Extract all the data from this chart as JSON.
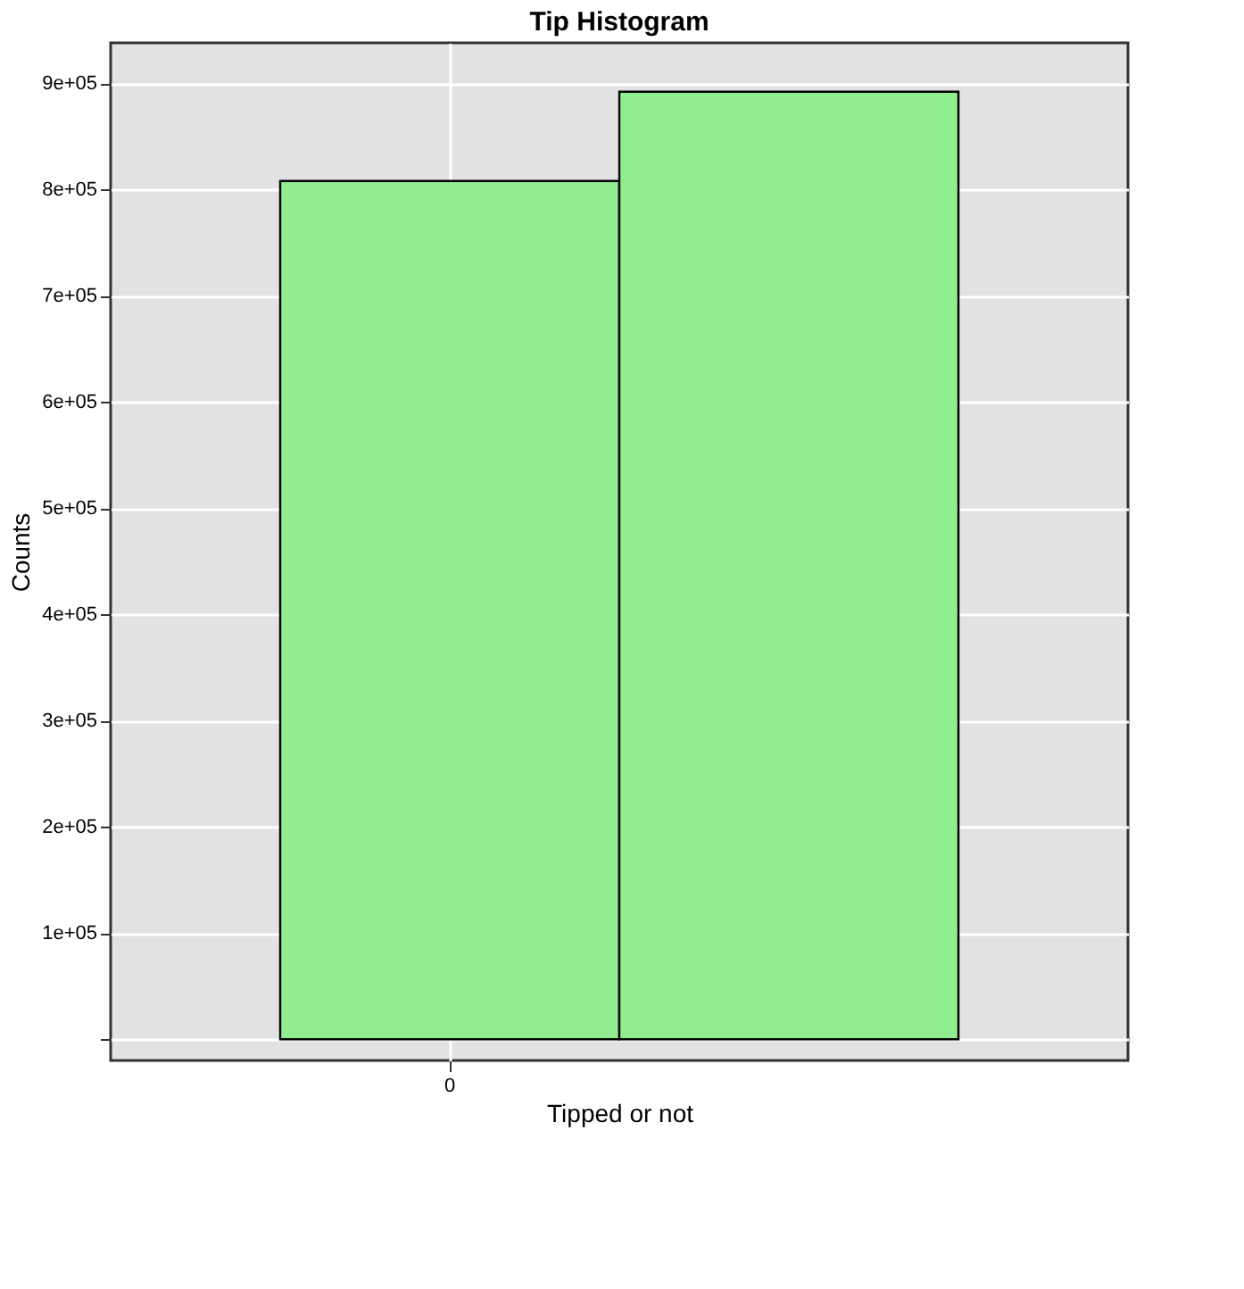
{
  "chart_data": {
    "type": "bar",
    "title": "Tip Histogram",
    "xlabel": "Tipped or not",
    "ylabel": "Counts",
    "categories": [
      "0",
      null
    ],
    "values": [
      808000,
      892000
    ],
    "color": "#90ee90",
    "ylim": [
      -20000,
      938000
    ],
    "yticks": [
      {
        "value": 0,
        "label": null
      },
      {
        "value": 100000,
        "label": "1e+05"
      },
      {
        "value": 200000,
        "label": "2e+05"
      },
      {
        "value": 300000,
        "label": "3e+05"
      },
      {
        "value": 400000,
        "label": "4e+05"
      },
      {
        "value": 500000,
        "label": "5e+05"
      },
      {
        "value": 600000,
        "label": "6e+05"
      },
      {
        "value": 700000,
        "label": "7e+05"
      },
      {
        "value": 800000,
        "label": "8e+05"
      },
      {
        "value": 900000,
        "label": "9e+05"
      }
    ],
    "grid": true
  }
}
